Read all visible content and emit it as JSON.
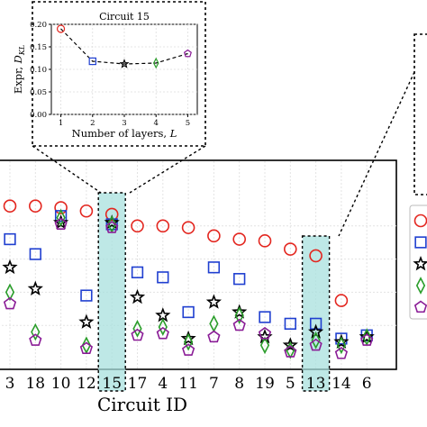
{
  "chart_data": [
    {
      "type": "scatter",
      "title": "Circuit 15",
      "xlabel": "Number of layers, L",
      "ylabel": "Expr, D_KL",
      "ylabel_prefix": "Expr, ",
      "ylabel_sym": "D",
      "ylabel_sub": "KL",
      "xlabel_prefix": "Number of layers, ",
      "xlabel_sym": "L",
      "xlim": [
        0.7,
        5.3
      ],
      "ylim": [
        0.0,
        0.2
      ],
      "xticks": [
        "1",
        "2",
        "3",
        "4",
        "5"
      ],
      "yticks": [
        "0.00",
        "0.05",
        "0.10",
        "0.15",
        "0.20"
      ],
      "grid": true,
      "x": [
        1,
        2,
        3,
        4,
        5
      ],
      "values": [
        0.19,
        0.118,
        0.112,
        0.114,
        0.135
      ],
      "markers": [
        "circle",
        "square",
        "star",
        "diamond",
        "pentagon"
      ],
      "colors": [
        "#e3261f",
        "#1f3fd0",
        "#000000",
        "#2a9d2a",
        "#8a1c96"
      ]
    },
    {
      "type": "scatter",
      "xlabel": "Circuit ID",
      "categories": [
        "3",
        "18",
        "10",
        "12",
        "15",
        "17",
        "4",
        "11",
        "7",
        "8",
        "19",
        "5",
        "13",
        "14",
        "6"
      ],
      "highlighted": [
        "15",
        "13"
      ],
      "grid": true,
      "legend": "right",
      "series": [
        {
          "marker": "circle",
          "color": "#e3261f",
          "values": [
            0.92,
            0.92,
            0.91,
            0.89,
            0.87,
            0.8,
            0.8,
            0.79,
            0.74,
            0.72,
            0.71,
            0.66,
            0.62,
            0.35,
            null
          ]
        },
        {
          "marker": "square",
          "color": "#1f3fd0",
          "values": [
            0.72,
            0.63,
            0.86,
            0.38,
            0.81,
            0.52,
            0.49,
            0.28,
            0.55,
            0.48,
            0.25,
            0.21,
            0.21,
            0.12,
            0.14
          ]
        },
        {
          "marker": "star",
          "color": "#000000",
          "values": [
            0.55,
            0.42,
            0.82,
            0.22,
            0.82,
            0.37,
            0.26,
            0.12,
            0.34,
            0.28,
            0.13,
            0.08,
            0.16,
            0.1,
            0.13
          ]
        },
        {
          "marker": "diamond",
          "color": "#2a9d2a",
          "values": [
            0.4,
            0.16,
            0.85,
            0.08,
            0.81,
            0.18,
            0.19,
            0.1,
            0.21,
            0.26,
            0.08,
            0.05,
            0.11,
            0.08,
            0.13
          ]
        },
        {
          "marker": "pentagon",
          "color": "#8a1c96",
          "values": [
            0.33,
            0.11,
            0.81,
            0.06,
            0.79,
            0.14,
            0.15,
            0.05,
            0.13,
            0.2,
            0.15,
            0.04,
            0.08,
            0.03,
            0.11
          ]
        }
      ]
    }
  ]
}
